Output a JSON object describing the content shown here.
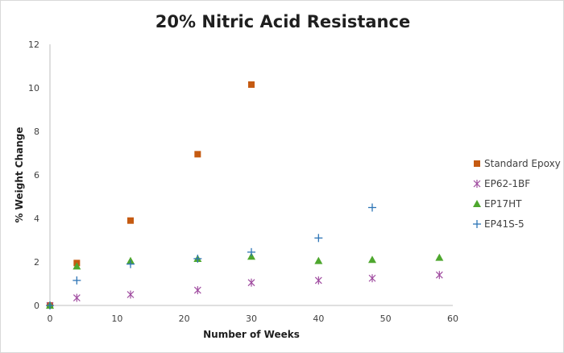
{
  "chart_data": {
    "type": "scatter",
    "title": "20% Nitric Acid Resistance",
    "xlabel": "Number of Weeks",
    "ylabel": "% Weight Change",
    "xlim": [
      0,
      60
    ],
    "ylim": [
      0,
      12
    ],
    "x_ticks": [
      "0",
      "10",
      "20",
      "30",
      "40",
      "50",
      "60"
    ],
    "y_ticks": [
      "0",
      "2",
      "4",
      "6",
      "8",
      "10",
      "12"
    ],
    "grid": false,
    "legend_position": "right",
    "series": [
      {
        "name": "Standard Epoxy",
        "marker": "square",
        "color": "#c55a11",
        "points": [
          [
            0,
            0
          ],
          [
            4,
            1.95
          ],
          [
            12,
            3.9
          ],
          [
            22,
            6.95
          ],
          [
            30,
            10.15
          ]
        ]
      },
      {
        "name": "EP62-1BF",
        "marker": "asterisk",
        "color": "#a04ca0",
        "points": [
          [
            0,
            0
          ],
          [
            4,
            0.35
          ],
          [
            12,
            0.5
          ],
          [
            22,
            0.7
          ],
          [
            30,
            1.05
          ],
          [
            40,
            1.15
          ],
          [
            48,
            1.25
          ],
          [
            58,
            1.4
          ]
        ]
      },
      {
        "name": "EP17HT",
        "marker": "triangle",
        "color": "#4ea72e",
        "points": [
          [
            0,
            0
          ],
          [
            4,
            1.8
          ],
          [
            12,
            2.05
          ],
          [
            22,
            2.15
          ],
          [
            30,
            2.25
          ],
          [
            40,
            2.05
          ],
          [
            48,
            2.1
          ],
          [
            58,
            2.2
          ]
        ]
      },
      {
        "name": "EP41S-5",
        "marker": "plus",
        "color": "#2e75b6",
        "points": [
          [
            0,
            0
          ],
          [
            4,
            1.15
          ],
          [
            12,
            1.9
          ],
          [
            22,
            2.15
          ],
          [
            30,
            2.45
          ],
          [
            40,
            3.1
          ],
          [
            48,
            4.5
          ]
        ]
      }
    ]
  }
}
